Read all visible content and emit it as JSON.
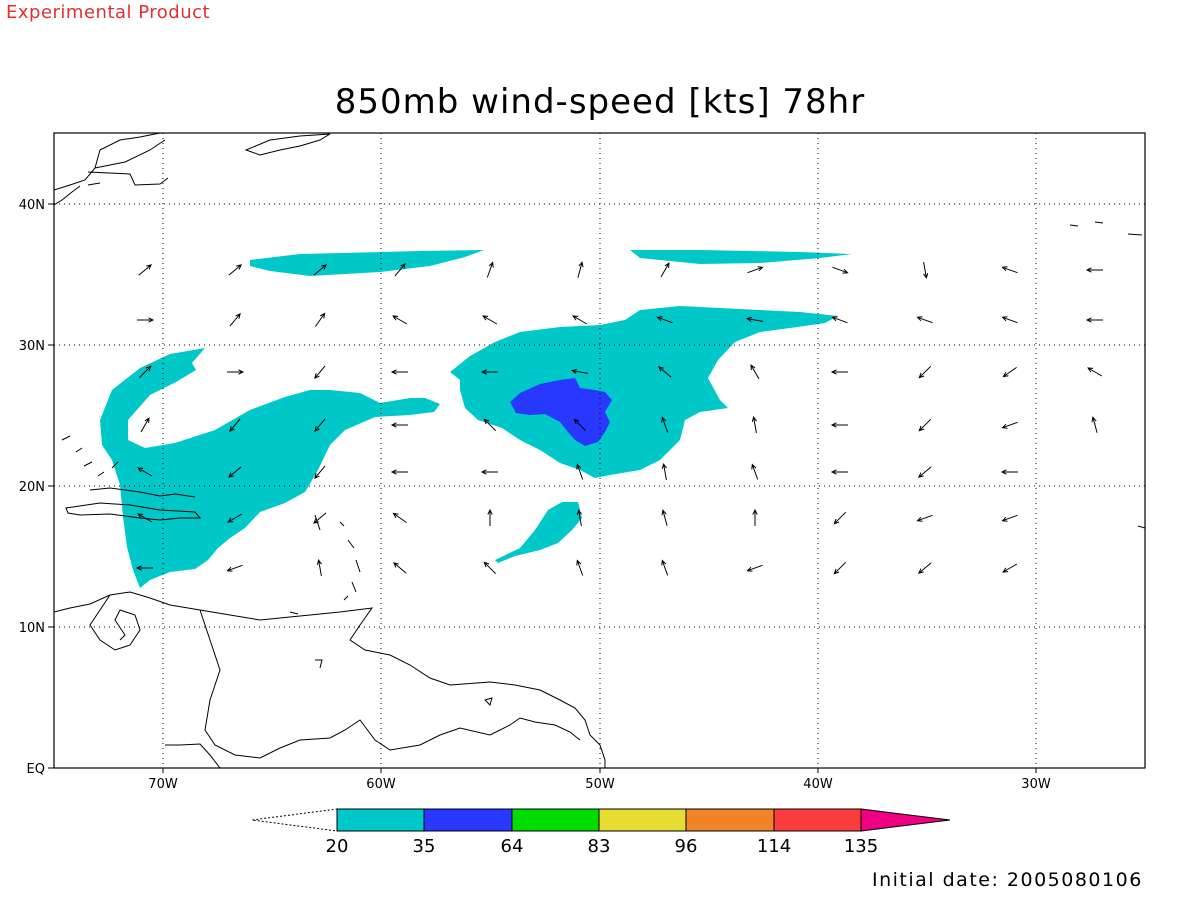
{
  "header": {
    "label": "Experimental Product",
    "color": "#e03030"
  },
  "title": "850mb wind-speed [kts] 78hr",
  "initial_date": "Initial date: 2005080106",
  "map": {
    "lat_labels": [
      "40N",
      "30N",
      "20N",
      "10N",
      "EQ"
    ],
    "lon_labels": [
      "70W",
      "60W",
      "50W",
      "40W",
      "30W"
    ],
    "lon_range": [
      -75,
      -25
    ],
    "lat_range": [
      0,
      45
    ],
    "grid": "dotted",
    "shading_colors": {
      "20-35": "#00c8c8",
      "35-64": "#2838ff"
    }
  },
  "colorbar": {
    "labels": [
      "20",
      "35",
      "64",
      "83",
      "96",
      "114",
      "135"
    ],
    "colors": [
      "#00c8c8",
      "#2838ff",
      "#00dc00",
      "#e6dc32",
      "#f08228",
      "#fa3c3c",
      "#f00082"
    ]
  }
}
